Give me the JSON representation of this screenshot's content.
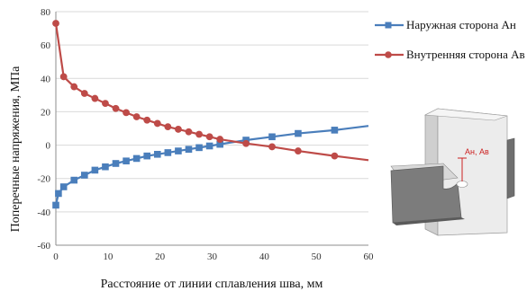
{
  "chart_data": {
    "type": "line",
    "xlabel": "Расстояние от линии сплавления шва, мм",
    "ylabel": "Поперечные напряжения, МПа",
    "xlim": [
      0,
      60
    ],
    "ylim": [
      -60,
      80
    ],
    "xticks": [
      "0",
      "10",
      "20",
      "30",
      "40",
      "50",
      "60"
    ],
    "yticks": [
      "-60",
      "-40",
      "-20",
      "0",
      "20",
      "40",
      "60",
      "80"
    ],
    "grid": "horizontal",
    "legend_position": "top-right",
    "series": [
      {
        "name": "Наружная сторона Ан",
        "color": "#4a7ebb",
        "marker": "square",
        "x": [
          0,
          0.5,
          1.5,
          3.5,
          5.5,
          7.5,
          9.5,
          11.5,
          13.5,
          15.5,
          17.5,
          19.5,
          21.5,
          23.5,
          25.5,
          27.5,
          29.5,
          31.5,
          36.5,
          41.5,
          46.5,
          53.5,
          60
        ],
        "y": [
          -36,
          -29,
          -25,
          -21,
          -18,
          -15,
          -13,
          -11,
          -9.5,
          -8,
          -6.5,
          -5.5,
          -4.5,
          -3.5,
          -2.5,
          -1.5,
          -0.5,
          0.5,
          3,
          5,
          7,
          9,
          11.5
        ]
      },
      {
        "name": "Внутренняя сторона Ав",
        "color": "#be4b48",
        "marker": "circle",
        "x": [
          0,
          1.5,
          3.5,
          5.5,
          7.5,
          9.5,
          11.5,
          13.5,
          15.5,
          17.5,
          19.5,
          21.5,
          23.5,
          25.5,
          27.5,
          29.5,
          31.5,
          36.5,
          41.5,
          46.5,
          53.5,
          60
        ],
        "y": [
          73,
          41,
          35,
          31,
          28,
          25,
          22,
          19.5,
          17,
          15,
          13,
          11,
          9.5,
          8,
          6.5,
          5,
          3.5,
          1,
          -1,
          -3.5,
          -6.5,
          -9
        ]
      }
    ],
    "annotation": {
      "label": "Ан, Ав",
      "color": "#cc2222"
    }
  }
}
